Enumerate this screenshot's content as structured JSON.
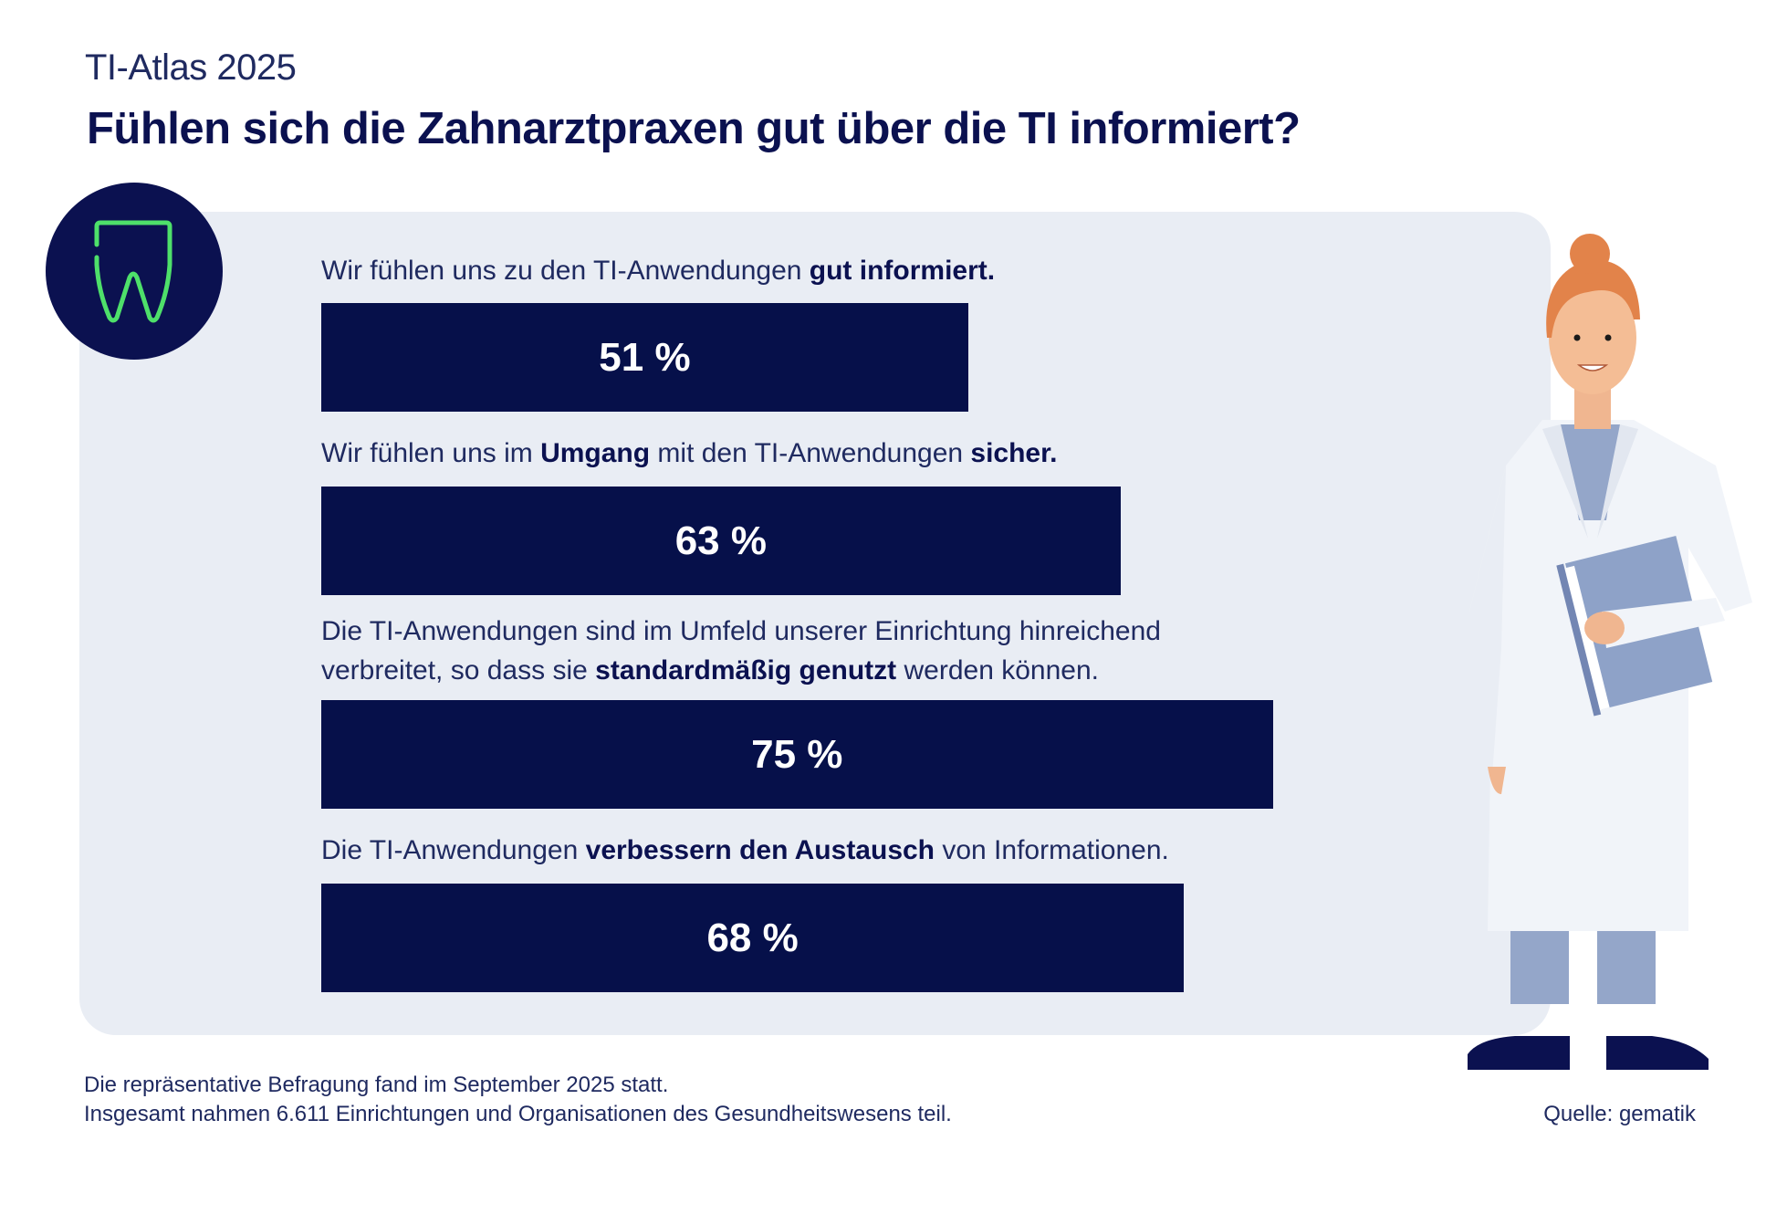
{
  "header": {
    "supertitle": "TI-Atlas 2025",
    "title": "Fühlen sich die Zahnarztpraxen gut über die TI informiert?"
  },
  "icon": "tooth-icon",
  "colors": {
    "bar": "#06104a",
    "panel": "#e9edf4",
    "icon_stroke": "#4ee06a",
    "text": "#0b1150"
  },
  "chart_data": {
    "type": "bar",
    "orientation": "horizontal",
    "title": "Fühlen sich die Zahnarztpraxen gut über die TI informiert?",
    "xlabel": "",
    "ylabel": "",
    "xlim": [
      0,
      100
    ],
    "unit": "%",
    "categories": [
      "Wir fühlen uns zu den TI-Anwendungen gut informiert.",
      "Wir fühlen uns im Umgang mit den TI-Anwendungen sicher.",
      "Die TI-Anwendungen sind im Umfeld unserer Einrichtung hinreichend verbreitet, so dass sie standardmäßig genutzt werden können.",
      "Die TI-Anwendungen verbessern den Austausch von Informationen."
    ],
    "values": [
      51,
      63,
      75,
      68
    ],
    "value_labels": [
      "51 %",
      "63 %",
      "75 %",
      "68 %"
    ]
  },
  "statements": [
    {
      "parts": [
        {
          "t": "Wir fühlen uns zu den TI-Anwendungen ",
          "b": false
        },
        {
          "t": "gut informiert.",
          "b": true
        }
      ]
    },
    {
      "parts": [
        {
          "t": "Wir fühlen uns im ",
          "b": false
        },
        {
          "t": "Umgang",
          "b": true
        },
        {
          "t": " mit den TI-Anwendungen ",
          "b": false
        },
        {
          "t": "sicher.",
          "b": true
        }
      ]
    },
    {
      "parts": [
        {
          "t": "Die TI-Anwendungen sind im Umfeld unserer Einrichtung hinreichend",
          "b": false
        },
        {
          "br": true
        },
        {
          "t": "verbreitet, so dass sie ",
          "b": false
        },
        {
          "t": "standardmäßig genutzt",
          "b": true
        },
        {
          "t": " werden können.",
          "b": false
        }
      ]
    },
    {
      "parts": [
        {
          "t": "Die TI-Anwendungen ",
          "b": false
        },
        {
          "t": "verbessern den Austausch",
          "b": true
        },
        {
          "t": " von Informationen.",
          "b": false
        }
      ]
    }
  ],
  "footer": {
    "line1": "Die repräsentative Befragung fand im September 2025 statt.",
    "line2": "Insgesamt nahmen 6.611 Einrichtungen und Organisationen des Gesundheitswesens teil.",
    "source": "Quelle: gematik"
  }
}
